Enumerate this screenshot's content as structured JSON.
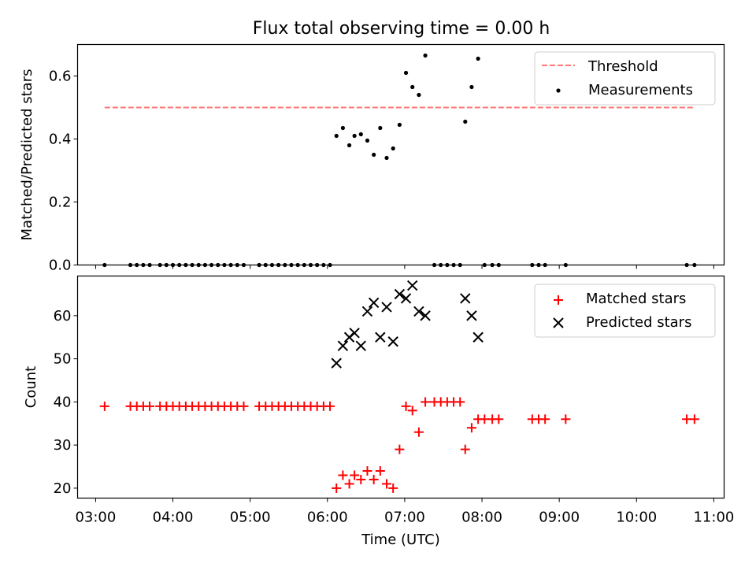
{
  "chart_data": [
    {
      "type": "scatter",
      "title": "Flux total observing time = 0.00 h",
      "ylabel": "Matched/Predicted stars",
      "xlim": [
        "02:46",
        "11:08"
      ],
      "ylim": [
        0,
        0.7
      ],
      "yticks": [
        0.0,
        0.2,
        0.4,
        0.6
      ],
      "ytick_labels": [
        "0.0",
        "0.2",
        "0.4",
        "0.6"
      ],
      "legend": {
        "placement": "top-right",
        "entries": [
          "Threshold",
          "Measurements"
        ]
      },
      "threshold": {
        "name": "Threshold",
        "value": 0.5,
        "x_start": "03:07",
        "x_end": "10:45",
        "color": "#ff7777",
        "style": "dashed"
      },
      "series": [
        {
          "name": "Measurements",
          "color": "#000000",
          "points": [
            [
              "03:07",
              0.0
            ],
            [
              "03:27",
              0.0
            ],
            [
              "03:32",
              0.0
            ],
            [
              "03:37",
              0.0
            ],
            [
              "03:42",
              0.0
            ],
            [
              "03:50",
              0.0
            ],
            [
              "03:55",
              0.0
            ],
            [
              "04:00",
              0.0
            ],
            [
              "04:05",
              0.0
            ],
            [
              "04:10",
              0.0
            ],
            [
              "04:15",
              0.0
            ],
            [
              "04:20",
              0.0
            ],
            [
              "04:25",
              0.0
            ],
            [
              "04:30",
              0.0
            ],
            [
              "04:35",
              0.0
            ],
            [
              "04:40",
              0.0
            ],
            [
              "04:45",
              0.0
            ],
            [
              "04:50",
              0.0
            ],
            [
              "04:55",
              0.0
            ],
            [
              "05:07",
              0.0
            ],
            [
              "05:12",
              0.0
            ],
            [
              "05:17",
              0.0
            ],
            [
              "05:22",
              0.0
            ],
            [
              "05:27",
              0.0
            ],
            [
              "05:32",
              0.0
            ],
            [
              "05:37",
              0.0
            ],
            [
              "05:42",
              0.0
            ],
            [
              "05:47",
              0.0
            ],
            [
              "05:52",
              0.0
            ],
            [
              "05:57",
              0.0
            ],
            [
              "06:02",
              0.0
            ],
            [
              "06:07",
              0.41
            ],
            [
              "06:12",
              0.435
            ],
            [
              "06:17",
              0.38
            ],
            [
              "06:21",
              0.41
            ],
            [
              "06:26",
              0.415
            ],
            [
              "06:31",
              0.395
            ],
            [
              "06:36",
              0.35
            ],
            [
              "06:41",
              0.435
            ],
            [
              "06:46",
              0.34
            ],
            [
              "06:51",
              0.37
            ],
            [
              "06:56",
              0.445
            ],
            [
              "07:01",
              0.61
            ],
            [
              "07:06",
              0.565
            ],
            [
              "07:11",
              0.54
            ],
            [
              "07:16",
              0.665
            ],
            [
              "07:23",
              0.0
            ],
            [
              "07:28",
              0.0
            ],
            [
              "07:33",
              0.0
            ],
            [
              "07:38",
              0.0
            ],
            [
              "07:43",
              0.0
            ],
            [
              "07:47",
              0.455
            ],
            [
              "07:52",
              0.565
            ],
            [
              "07:57",
              0.655
            ],
            [
              "08:02",
              0.0
            ],
            [
              "08:08",
              0.0
            ],
            [
              "08:13",
              0.0
            ],
            [
              "08:39",
              0.0
            ],
            [
              "08:44",
              0.0
            ],
            [
              "08:49",
              0.0
            ],
            [
              "09:05",
              0.0
            ],
            [
              "10:39",
              0.0
            ],
            [
              "10:45",
              0.0
            ]
          ]
        }
      ]
    },
    {
      "type": "scatter",
      "xlabel": "Time (UTC)",
      "ylabel": "Count",
      "xlim": [
        "02:46",
        "11:08"
      ],
      "ylim": [
        17.7,
        69.2
      ],
      "yticks": [
        20,
        30,
        40,
        50,
        60
      ],
      "ytick_labels": [
        "20",
        "30",
        "40",
        "50",
        "60"
      ],
      "xticks": [
        "03:00",
        "04:00",
        "05:00",
        "06:00",
        "07:00",
        "08:00",
        "09:00",
        "10:00",
        "11:00"
      ],
      "legend": {
        "placement": "top-right",
        "entries": [
          "Matched stars",
          "Predicted stars"
        ]
      },
      "series": [
        {
          "name": "Matched stars",
          "marker": "plus",
          "color": "#ff0000",
          "points": [
            [
              "03:07",
              39
            ],
            [
              "03:27",
              39
            ],
            [
              "03:32",
              39
            ],
            [
              "03:37",
              39
            ],
            [
              "03:42",
              39
            ],
            [
              "03:50",
              39
            ],
            [
              "03:55",
              39
            ],
            [
              "04:00",
              39
            ],
            [
              "04:05",
              39
            ],
            [
              "04:10",
              39
            ],
            [
              "04:15",
              39
            ],
            [
              "04:20",
              39
            ],
            [
              "04:25",
              39
            ],
            [
              "04:30",
              39
            ],
            [
              "04:35",
              39
            ],
            [
              "04:40",
              39
            ],
            [
              "04:45",
              39
            ],
            [
              "04:50",
              39
            ],
            [
              "04:55",
              39
            ],
            [
              "05:07",
              39
            ],
            [
              "05:12",
              39
            ],
            [
              "05:17",
              39
            ],
            [
              "05:22",
              39
            ],
            [
              "05:27",
              39
            ],
            [
              "05:32",
              39
            ],
            [
              "05:37",
              39
            ],
            [
              "05:42",
              39
            ],
            [
              "05:47",
              39
            ],
            [
              "05:52",
              39
            ],
            [
              "05:57",
              39
            ],
            [
              "06:02",
              39
            ],
            [
              "06:07",
              20
            ],
            [
              "06:12",
              23
            ],
            [
              "06:17",
              21
            ],
            [
              "06:21",
              23
            ],
            [
              "06:26",
              22
            ],
            [
              "06:31",
              24
            ],
            [
              "06:36",
              22
            ],
            [
              "06:41",
              24
            ],
            [
              "06:46",
              21
            ],
            [
              "06:51",
              20
            ],
            [
              "06:56",
              29
            ],
            [
              "07:01",
              39
            ],
            [
              "07:06",
              38
            ],
            [
              "07:11",
              33
            ],
            [
              "07:16",
              40
            ],
            [
              "07:23",
              40
            ],
            [
              "07:28",
              40
            ],
            [
              "07:33",
              40
            ],
            [
              "07:38",
              40
            ],
            [
              "07:43",
              40
            ],
            [
              "07:47",
              29
            ],
            [
              "07:52",
              34
            ],
            [
              "07:57",
              36
            ],
            [
              "08:02",
              36
            ],
            [
              "08:08",
              36
            ],
            [
              "08:13",
              36
            ],
            [
              "08:39",
              36
            ],
            [
              "08:44",
              36
            ],
            [
              "08:49",
              36
            ],
            [
              "09:05",
              36
            ],
            [
              "10:39",
              36
            ],
            [
              "10:45",
              36
            ]
          ]
        },
        {
          "name": "Predicted stars",
          "marker": "x",
          "color": "#000000",
          "points": [
            [
              "06:07",
              49
            ],
            [
              "06:12",
              53
            ],
            [
              "06:17",
              55
            ],
            [
              "06:21",
              56
            ],
            [
              "06:26",
              53
            ],
            [
              "06:31",
              61
            ],
            [
              "06:36",
              63
            ],
            [
              "06:41",
              55
            ],
            [
              "06:46",
              62
            ],
            [
              "06:51",
              54
            ],
            [
              "06:56",
              65
            ],
            [
              "07:01",
              64
            ],
            [
              "07:06",
              67
            ],
            [
              "07:11",
              61
            ],
            [
              "07:16",
              60
            ],
            [
              "07:47",
              64
            ],
            [
              "07:52",
              60
            ],
            [
              "07:57",
              55
            ]
          ]
        }
      ]
    }
  ]
}
